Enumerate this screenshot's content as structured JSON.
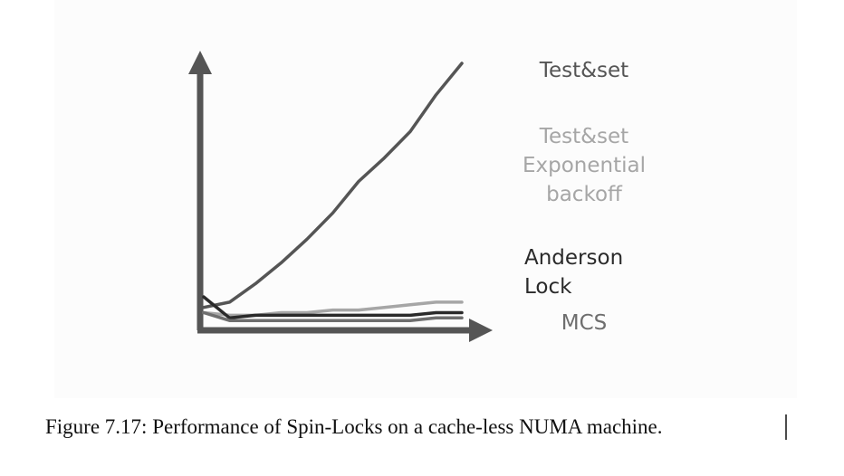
{
  "chart_data": {
    "type": "line",
    "x": [
      0,
      1,
      2,
      3,
      4,
      5,
      6,
      7,
      8,
      9,
      10
    ],
    "xlim": [
      0,
      10
    ],
    "ylim": [
      0,
      100
    ],
    "series": [
      {
        "name": "Test&set",
        "color": "#555555",
        "values": [
          7,
          9,
          16,
          24,
          33,
          43,
          55,
          64,
          74,
          88,
          100
        ]
      },
      {
        "name": "Test&set Exponential backoff",
        "color": "#a6a6a6",
        "values": [
          5,
          4,
          4,
          5,
          5,
          6,
          6,
          7,
          8,
          9,
          9
        ]
      },
      {
        "name": "Anderson Lock",
        "color": "#2a2a2a",
        "values": [
          11,
          3,
          4,
          4,
          4,
          4,
          4,
          4,
          4,
          5,
          5
        ]
      },
      {
        "name": "MCS",
        "color": "#6e6e6e",
        "values": [
          5,
          2,
          2,
          2,
          2,
          2,
          2,
          2,
          2,
          3,
          3
        ]
      }
    ],
    "caption": "Figure 7.17: Performance of Spin-Locks on a cache-less NUMA machine."
  }
}
